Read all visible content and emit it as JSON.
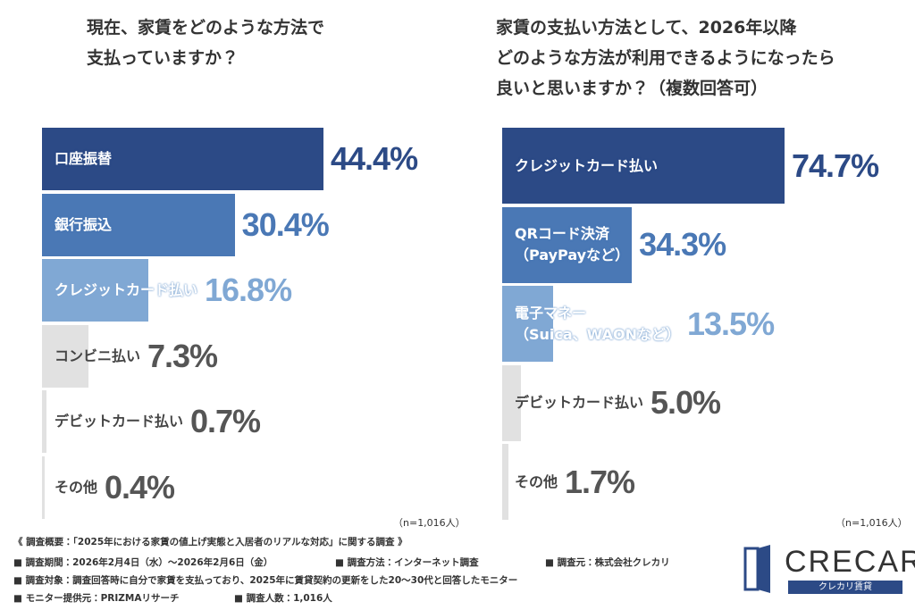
{
  "chart_data": [
    {
      "type": "bar",
      "title": "現在、家賃をどのような方法で\n支払っていますか？",
      "categories": [
        "口座振替",
        "銀行振込",
        "クレジットカード払い",
        "コンビニ払い",
        "デビットカード払い",
        "その他"
      ],
      "values": [
        44.4,
        30.4,
        16.8,
        7.3,
        0.7,
        0.4
      ],
      "value_labels": [
        "44.4%",
        "30.4%",
        "16.8%",
        "7.3%",
        "0.7%",
        "0.4%"
      ],
      "colors": [
        "#2c4a86",
        "#4a78b5",
        "#80a8d4",
        "#e1e1e1",
        "#e1e1e1",
        "#e1e1e1"
      ],
      "label_colors": [
        "#2c4a86",
        "#4a78b5",
        "#80a8d4",
        "#555555",
        "#555555",
        "#555555"
      ],
      "note": "（n=1,016人）"
    },
    {
      "type": "bar",
      "title": "家賃の支払い方法として、2026年以降\nどのような方法が利用できるようになったら\n良いと思いますか？（複数回答可）",
      "categories": [
        "クレジットカード払い",
        "QRコード決済\n（PayPayなど）",
        "電子マネー\n（Suica、WAONなど）",
        "デビットカード払い",
        "その他"
      ],
      "values": [
        74.7,
        34.3,
        13.5,
        5.0,
        1.7
      ],
      "value_labels": [
        "74.7%",
        "34.3%",
        "13.5%",
        "5.0%",
        "1.7%"
      ],
      "colors": [
        "#2c4a86",
        "#4a78b5",
        "#80a8d4",
        "#e1e1e1",
        "#e1e1e1"
      ],
      "label_colors": [
        "#2c4a86",
        "#4a78b5",
        "#80a8d4",
        "#555555",
        "#555555"
      ],
      "note": "（n=1,016人）"
    }
  ],
  "footer": {
    "heading": "《 調査概要：「2025年における家賃の値上げ実態と入居者のリアルな対応」に関する調査 》",
    "items": [
      "■ 調査期間：2026年2月4日（水）〜2026年2月6日（金）",
      "■ 調査方法：インターネット調査",
      "■ 調査元：株式会社クレカリ",
      "■ 調査対象：調査回答時に自分で家賃を支払っており、2025年に賃貸契約の更新をした20〜30代と回答したモニター",
      "■ モニター提供元：PRIZMAリサーチ",
      "■ 調査人数：1,016人"
    ]
  },
  "logo": {
    "name": "CRECARI",
    "tagline": "クレカリ賃貸"
  }
}
